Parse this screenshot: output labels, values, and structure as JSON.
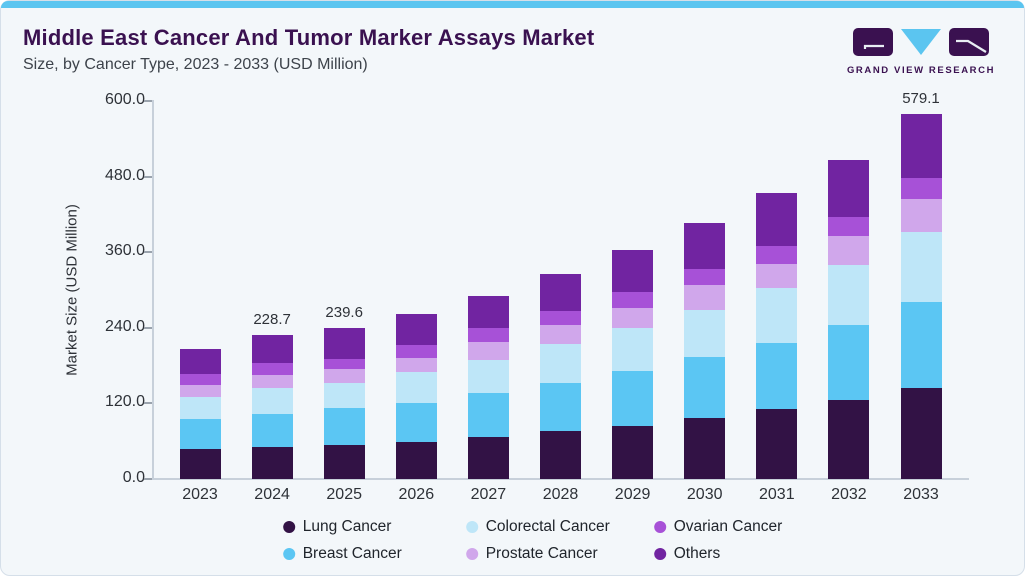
{
  "header": {
    "title": "Middle East Cancer And Tumor Marker Assays Market",
    "subtitle": "Size, by Cancer Type, 2023 - 2033 (USD Million)",
    "logo_text": "GRAND VIEW RESEARCH"
  },
  "colors": {
    "accent_blue": "#5bc5f0",
    "title_purple": "#3a1150",
    "card_background": "#f3f7fa",
    "card_border": "#d5dfe9",
    "axis_line": "#c7d0da",
    "tick_text": "#2e3238"
  },
  "chart_data": {
    "type": "bar",
    "stacked": true,
    "title": "Middle East Cancer And Tumor Marker Assays Market Size, by Cancer Type, 2023 - 2033 (USD Million)",
    "xlabel": "",
    "ylabel": "Market Size (USD Million)",
    "ylim": [
      0,
      600
    ],
    "yticks": [
      0,
      120,
      240,
      360,
      480,
      600
    ],
    "ytick_labels": [
      "0.0",
      "120.0",
      "240.0",
      "360.0",
      "480.0",
      "600.0"
    ],
    "grid": false,
    "legend_position": "bottom",
    "categories": [
      "2023",
      "2024",
      "2025",
      "2026",
      "2027",
      "2028",
      "2029",
      "2030",
      "2031",
      "2032",
      "2033"
    ],
    "series": [
      {
        "name": "Lung Cancer",
        "color": "#321245",
        "values": [
          47.5,
          50.3,
          54.2,
          59.2,
          66.1,
          76.8,
          84.8,
          96.5,
          111.5,
          125.9,
          144.8
        ]
      },
      {
        "name": "Breast Cancer",
        "color": "#5bc6f3",
        "values": [
          48.0,
          52.5,
          57.9,
          61.3,
          71.0,
          75.7,
          86.9,
          96.6,
          104.0,
          117.8,
          136.0
        ]
      },
      {
        "name": "Colorectal Cancer",
        "color": "#bee6f8",
        "values": [
          34.6,
          42.3,
          40.2,
          49.6,
          51.7,
          61.4,
          67.8,
          75.7,
          87.2,
          95.5,
          111.5
        ]
      },
      {
        "name": "Prostate Cancer",
        "color": "#d0a7eb",
        "values": [
          19.8,
          20.4,
          22.5,
          22.4,
          28.3,
          29.8,
          32.0,
          38.9,
          39.2,
          45.9,
          52.2
        ]
      },
      {
        "name": "Ovarian Cancer",
        "color": "#a751d7",
        "values": [
          16.5,
          18.8,
          16.1,
          20.3,
          22.4,
          23.5,
          25.0,
          26.2,
          27.2,
          30.9,
          33.8
        ]
      },
      {
        "name": "Others",
        "color": "#7124a1",
        "values": [
          40.0,
          44.4,
          48.7,
          49.1,
          51.7,
          57.6,
          66.7,
          72.0,
          84.8,
          90.1,
          100.8
        ]
      }
    ],
    "bar_labels": [
      {
        "category": "2024",
        "label": "228.7"
      },
      {
        "category": "2025",
        "label": "239.6"
      },
      {
        "category": "2033",
        "label": "579.1"
      }
    ],
    "legend_order": [
      "Lung Cancer",
      "Colorectal Cancer",
      "Ovarian Cancer",
      "Breast Cancer",
      "Prostate Cancer",
      "Others"
    ]
  }
}
